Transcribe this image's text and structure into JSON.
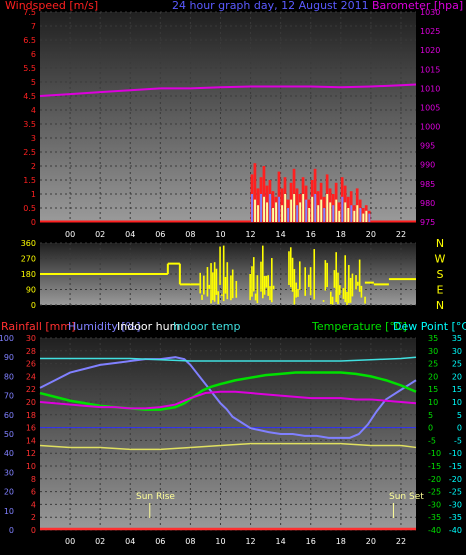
{
  "colors": {
    "wind": "#ff2020",
    "baro": "#dd00dd",
    "title": "#5a5aff",
    "winddir": "#ffff00",
    "compass": "#ffff00",
    "rain": "#ff3030",
    "humidity": "#8080ff",
    "indoor_hum": "#ffffff",
    "indoor_temp": "#40e0e0",
    "temperature": "#00e000",
    "dew": "#00ffff",
    "sun": "#ffff99",
    "xtick": "#ffffff"
  },
  "title": "24 hour graph day, 12 August 2011",
  "chart_data": [
    {
      "type": "line",
      "name": "wind-baro",
      "left_label": "Windspeed [m/s]",
      "right_label": "Barometer [hpa]",
      "x_ticks": [
        "00",
        "02",
        "04",
        "06",
        "08",
        "10",
        "12",
        "14",
        "16",
        "18",
        "20",
        "22"
      ],
      "xlim": [
        -2,
        23
      ],
      "ylim_left": [
        0,
        7.5
      ],
      "y_ticks_left": [
        "0",
        "0.5",
        "1",
        "1.5",
        "2",
        "2.5",
        "3",
        "3.5",
        "4",
        "4.5",
        "5",
        "5.5",
        "6",
        "6.5",
        "7",
        "7.5"
      ],
      "ylim_right": [
        975,
        1030
      ],
      "y_ticks_right": [
        "975",
        "980",
        "985",
        "990",
        "995",
        "1000",
        "1005",
        "1010",
        "1015",
        "1020",
        "1025",
        "1030"
      ],
      "series": [
        {
          "key": "barometer",
          "axis": "right",
          "x": [
            -2,
            0,
            2,
            4,
            6,
            8,
            10,
            12,
            14,
            16,
            18,
            20,
            22,
            23
          ],
          "y": [
            1008,
            1008.5,
            1009,
            1009.5,
            1010,
            1010,
            1010.3,
            1010.5,
            1010.5,
            1010.5,
            1010.3,
            1010.5,
            1010.8,
            1011
          ]
        }
      ],
      "wind_gust": {
        "x": [
          12,
          12.2,
          12.4,
          12.6,
          12.8,
          13,
          13.2,
          13.4,
          13.6,
          13.8,
          14,
          14.2,
          14.4,
          14.6,
          14.8,
          15,
          15.2,
          15.4,
          15.6,
          15.8,
          16,
          16.2,
          16.4,
          16.6,
          16.8,
          17,
          17.2,
          17.4,
          17.6,
          17.8,
          18,
          18.2,
          18.4,
          18.6,
          18.8,
          19,
          19.2,
          19.4,
          19.6,
          19.8
        ],
        "y": [
          1.7,
          2.1,
          1.2,
          1.6,
          2.0,
          1.3,
          1.5,
          1.1,
          0.9,
          1.8,
          1.2,
          1.6,
          0.8,
          1.4,
          1.9,
          1.2,
          1.0,
          1.6,
          1.3,
          0.8,
          1.5,
          1.9,
          1.1,
          1.4,
          0.9,
          1.7,
          1.2,
          1.0,
          1.4,
          0.7,
          1.6,
          1.3,
          0.9,
          1.1,
          0.6,
          1.2,
          0.8,
          0.5,
          0.6,
          0.4
        ]
      },
      "wind_avg": {
        "x": [
          12,
          12.2,
          12.4,
          12.6,
          12.8,
          13,
          13.2,
          13.4,
          13.6,
          13.8,
          14,
          14.2,
          14.4,
          14.6,
          14.8,
          15,
          15.2,
          15.4,
          15.6,
          15.8,
          16,
          16.2,
          16.4,
          16.6,
          16.8,
          17,
          17.2,
          17.4,
          17.6,
          17.8,
          18,
          18.2,
          18.4,
          18.6,
          18.8,
          19,
          19.2,
          19.4,
          19.6,
          19.8
        ],
        "y": [
          1.0,
          0.8,
          0.6,
          1.0,
          0.9,
          0.7,
          1.0,
          0.5,
          0.7,
          0.9,
          0.6,
          1.0,
          0.5,
          0.8,
          1.0,
          0.6,
          0.7,
          1.0,
          0.8,
          0.5,
          0.9,
          1.0,
          0.6,
          0.8,
          0.5,
          1.0,
          0.7,
          0.6,
          0.8,
          0.4,
          0.9,
          0.7,
          0.5,
          0.6,
          0.4,
          0.6,
          0.5,
          0.3,
          0.4,
          0.3
        ]
      }
    },
    {
      "type": "bar",
      "name": "wind-direction",
      "x_ticks": [
        "00",
        "02",
        "04",
        "06",
        "08",
        "10",
        "12",
        "14",
        "16",
        "18",
        "20",
        "22"
      ],
      "xlim": [
        -2,
        23
      ],
      "ylim": [
        0,
        360
      ],
      "y_ticks": [
        "0",
        "90",
        "180",
        "270",
        "360"
      ],
      "compass": [
        "N",
        "W",
        "S",
        "E",
        "N"
      ],
      "segments": [
        {
          "x0": -2,
          "x1": 6.5,
          "y": 180
        },
        {
          "x0": 6.5,
          "x1": 7.3,
          "y": 240
        },
        {
          "x0": 7.3,
          "x1": 8.6,
          "y": 120
        }
      ],
      "bursts": [
        {
          "x0": 8.6,
          "x1": 11.2
        },
        {
          "x0": 11.8,
          "x1": 13.5
        },
        {
          "x0": 14.5,
          "x1": 16.2
        },
        {
          "x0": 16.8,
          "x1": 19.6
        }
      ],
      "tail": [
        {
          "x0": 19.6,
          "x1": 20.2,
          "y": 130
        },
        {
          "x0": 20.2,
          "x1": 21.2,
          "y": 120
        },
        {
          "x0": 21.2,
          "x1": 23,
          "y": 150
        }
      ]
    },
    {
      "type": "line",
      "name": "temp-humidity",
      "labels": {
        "rain": "Rainfall [mm]",
        "humidity": "Humidity [%]",
        "indoor_hum": "Indoor hum",
        "indoor_temp": "Indoor temp",
        "temperature": "Temperature [°C]",
        "dew": "Dew Point [°C]"
      },
      "x_ticks": [
        "00",
        "02",
        "04",
        "06",
        "08",
        "10",
        "12",
        "14",
        "16",
        "18",
        "20",
        "22"
      ],
      "xlim": [
        -2,
        23
      ],
      "y_ticks_hum": [
        "0",
        "10",
        "20",
        "30",
        "40",
        "50",
        "60",
        "70",
        "80",
        "90",
        "100"
      ],
      "y_ticks_rain": [
        "0",
        "2",
        "4",
        "6",
        "8",
        "10",
        "12",
        "14",
        "16",
        "18",
        "20",
        "22",
        "24",
        "26",
        "28",
        "30"
      ],
      "y_ticks_temp": [
        "-40",
        "-35",
        "-30",
        "-25",
        "-20",
        "-15",
        "-10",
        "-5",
        "0",
        "5",
        "10",
        "15",
        "20",
        "25",
        "30",
        "35"
      ],
      "ylim_hum": [
        0,
        100
      ],
      "ylim_temp": [
        -40,
        35
      ],
      "sunrise_label": "Sun Rise",
      "sunset_label": "Sun Set",
      "sunrise_x": 5.3,
      "sunset_x": 21.5,
      "series": [
        {
          "key": "humidity",
          "axis": "hum",
          "x": [
            -2,
            -1,
            0,
            1,
            2,
            3,
            4,
            5,
            6,
            7,
            7.6,
            8,
            8.4,
            8.8,
            9.2,
            9.6,
            10,
            10.4,
            10.8,
            11.4,
            12,
            12.6,
            13.2,
            14,
            14.8,
            15.6,
            16.4,
            17.2,
            18,
            18.6,
            19.2,
            19.8,
            20.4,
            21,
            21.8,
            22.6,
            23
          ],
          "y": [
            74,
            78,
            82,
            84,
            86,
            87,
            88,
            89,
            89,
            90,
            89,
            86,
            82,
            78,
            74,
            70,
            66,
            63,
            59,
            56,
            53,
            52,
            51,
            50,
            50,
            49,
            49,
            48,
            48,
            48,
            50,
            55,
            62,
            68,
            72,
            76,
            78
          ]
        },
        {
          "key": "indoor_hum",
          "axis": "hum",
          "x": [
            -2,
            0,
            2,
            4,
            6,
            8,
            10,
            12,
            14,
            16,
            18,
            20,
            22,
            23
          ],
          "y": [
            44,
            43,
            43,
            42,
            42,
            43,
            44,
            45,
            45,
            45,
            45,
            44,
            44,
            43
          ]
        },
        {
          "key": "indoor_temp",
          "axis": "temp",
          "x": [
            -2,
            0,
            2,
            4,
            6,
            8,
            10,
            12,
            14,
            16,
            18,
            20,
            22,
            23
          ],
          "y": [
            27,
            27,
            27,
            27,
            26.5,
            26,
            26,
            26,
            26,
            26,
            26,
            26.5,
            27,
            27.5
          ]
        },
        {
          "key": "temperature",
          "axis": "temp",
          "x": [
            -2,
            -1,
            0,
            1,
            2,
            3,
            4,
            5,
            6,
            7,
            7.6,
            8.2,
            8.8,
            9.4,
            10,
            11,
            12,
            13,
            14,
            15,
            16,
            17,
            18,
            19,
            20,
            21,
            22,
            23
          ],
          "y": [
            13.5,
            12,
            10.5,
            9.5,
            8.5,
            8,
            7.5,
            7,
            7,
            8,
            9.5,
            12,
            14.5,
            16,
            17,
            18.5,
            19.5,
            20.5,
            21,
            21.5,
            21.5,
            21.5,
            21.5,
            21,
            20,
            18.5,
            16.5,
            14
          ]
        },
        {
          "key": "dew",
          "axis": "temp",
          "x": [
            -2,
            -1,
            0,
            1,
            2,
            3,
            4,
            5,
            6,
            7,
            8,
            9,
            10,
            11,
            12,
            13,
            14,
            15,
            16,
            17,
            18,
            19,
            20,
            21,
            22,
            23
          ],
          "y": [
            10,
            9.5,
            9,
            8.5,
            8,
            8,
            7.5,
            7.5,
            8,
            9,
            11.5,
            13.5,
            14,
            14,
            13.5,
            13,
            12.5,
            12,
            11.5,
            11.5,
            11.5,
            11,
            11,
            10.5,
            10,
            9.5
          ]
        },
        {
          "key": "rain",
          "axis": "hum",
          "x": [
            -2,
            23
          ],
          "y": [
            0,
            0
          ]
        }
      ]
    }
  ]
}
